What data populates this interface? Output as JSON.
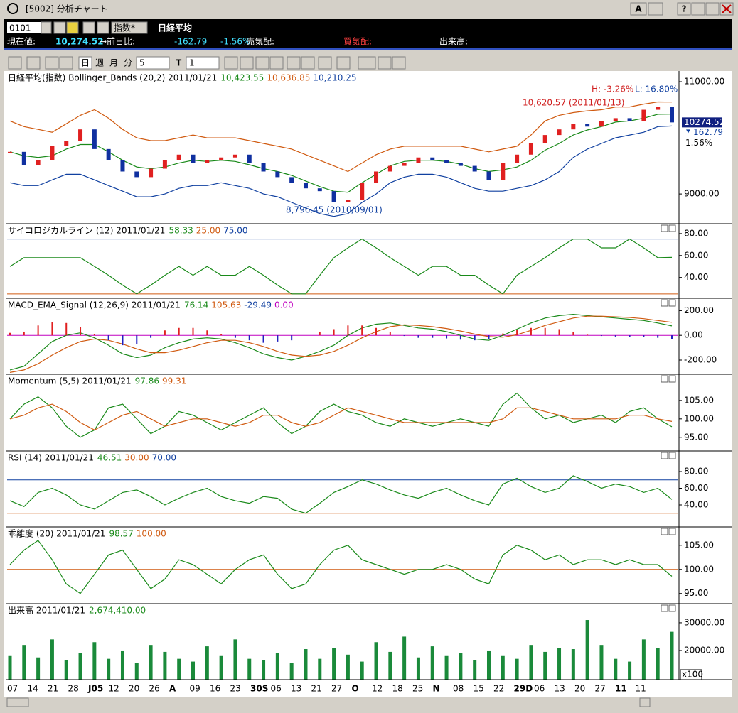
{
  "window": {
    "title": "[5002] 分析チャート",
    "buttons": [
      "A",
      "?"
    ]
  },
  "info_bar": {
    "code": "0101",
    "kind": "指数*",
    "name": "日経平均",
    "price_label": "現在値:",
    "price": "10,274.52",
    "change_label": "→前日比:",
    "change": "-162.79",
    "change_pct": "-1.56%",
    "ask_label": "売気配:",
    "bid_label": "買気配:",
    "volume_label": "出来高:"
  },
  "toolbar": {
    "periods": [
      "日",
      "週",
      "月",
      "分"
    ],
    "minutes": "5",
    "tick_label": "T",
    "tick_count": "1"
  },
  "x_axis": {
    "labels": [
      "07",
      "14",
      "21",
      "28",
      "J05",
      "12",
      "20",
      "26",
      "A",
      "09",
      "16",
      "23",
      "30S",
      "06",
      "13",
      "21",
      "27",
      "O",
      "12",
      "18",
      "25",
      "N",
      "08",
      "15",
      "22",
      "29D",
      "06",
      "13",
      "20",
      "27",
      "11",
      "11"
    ]
  },
  "chart_data": [
    {
      "type": "candlestick",
      "title": "日経平均(指数) Bollinger_Bands (20,2) 2011/01/21",
      "readouts": [
        {
          "text": "10,423.55",
          "color": "#1a8a1a"
        },
        {
          "text": "10,636.85",
          "color": "#d05a10"
        },
        {
          "text": "10,210.25",
          "color": "#1040a0"
        }
      ],
      "up_color": "#e02020",
      "down_color": "#1030a0",
      "close": [
        9750,
        9520,
        9600,
        9850,
        9950,
        10150,
        9800,
        9600,
        9400,
        9300,
        9450,
        9600,
        9700,
        9550,
        9600,
        9650,
        9700,
        9550,
        9400,
        9300,
        9200,
        9100,
        9050,
        8850,
        8900,
        9200,
        9400,
        9500,
        9550,
        9650,
        9600,
        9550,
        9500,
        9400,
        9250,
        9550,
        9700,
        9900,
        10050,
        10150,
        10250,
        10200,
        10300,
        10350,
        10300,
        10500,
        10550,
        10274.52
      ],
      "series": [
        {
          "color": "#1a8a1a",
          "values": [
            9750,
            9680,
            9650,
            9680,
            9800,
            9880,
            9880,
            9750,
            9600,
            9480,
            9450,
            9480,
            9550,
            9600,
            9580,
            9600,
            9580,
            9520,
            9450,
            9400,
            9330,
            9230,
            9130,
            9050,
            9030,
            9200,
            9350,
            9500,
            9580,
            9600,
            9600,
            9580,
            9530,
            9450,
            9400,
            9430,
            9480,
            9600,
            9780,
            9900,
            10050,
            10140,
            10200,
            10280,
            10300,
            10350,
            10420,
            10423.55
          ]
        },
        {
          "color": "#d05a10",
          "values": [
            10300,
            10200,
            10150,
            10100,
            10250,
            10400,
            10500,
            10350,
            10150,
            10000,
            9950,
            9950,
            10000,
            10050,
            10000,
            10000,
            10000,
            9950,
            9900,
            9850,
            9800,
            9700,
            9600,
            9500,
            9400,
            9550,
            9700,
            9800,
            9850,
            9850,
            9850,
            9850,
            9850,
            9800,
            9750,
            9800,
            9850,
            10050,
            10300,
            10400,
            10450,
            10480,
            10500,
            10550,
            10550,
            10600,
            10640,
            10636.85
          ]
        },
        {
          "color": "#1040a0",
          "values": [
            9200,
            9150,
            9150,
            9250,
            9350,
            9350,
            9250,
            9150,
            9050,
            8950,
            8950,
            9000,
            9100,
            9150,
            9150,
            9200,
            9150,
            9100,
            9000,
            8950,
            8850,
            8750,
            8650,
            8600,
            8650,
            8850,
            9000,
            9200,
            9300,
            9350,
            9350,
            9300,
            9200,
            9100,
            9050,
            9050,
            9100,
            9150,
            9250,
            9400,
            9650,
            9800,
            9900,
            10000,
            10050,
            10100,
            10200,
            10210.25
          ]
        }
      ],
      "ylim": [
        8470,
        11190
      ],
      "yticks": [
        {
          "value": 11000,
          "label": "11000.00"
        },
        {
          "value": 9000,
          "label": "9000.00"
        }
      ],
      "annotations": [
        "H: -3.26%",
        "L: 16.80%",
        "10,620.57 (2011/01/13)",
        "8,796.45 (2010/09/01)"
      ],
      "last_price": {
        "label": "10274.52",
        "change": "162.79",
        "change_pct": "1.56%"
      }
    },
    {
      "type": "line",
      "title": "サイコロジカルライン (12) 2011/01/21",
      "readouts": [
        {
          "text": "58.33",
          "color": "#1a8a1a"
        },
        {
          "text": "25.00",
          "color": "#d05a10"
        },
        {
          "text": "75.00",
          "color": "#1040a0"
        }
      ],
      "series": [
        {
          "color": "#1a8a1a",
          "values": [
            50,
            58,
            58,
            58,
            58,
            58,
            50,
            42,
            33,
            25,
            33,
            42,
            50,
            42,
            50,
            42,
            42,
            50,
            42,
            33,
            25,
            25,
            42,
            58,
            67,
            75,
            67,
            58,
            50,
            42,
            50,
            50,
            42,
            42,
            33,
            25,
            42,
            50,
            58,
            67,
            75,
            75,
            67,
            67,
            75,
            67,
            58,
            58.33
          ]
        }
      ],
      "reference_lines": [
        {
          "value": 25,
          "color": "#d05a10"
        },
        {
          "value": 75,
          "color": "#1040a0"
        }
      ],
      "ylim": [
        21,
        89
      ],
      "yticks": [
        {
          "value": 80,
          "label": "80.00"
        },
        {
          "value": 60,
          "label": "60.00"
        },
        {
          "value": 40,
          "label": "40.00"
        }
      ]
    },
    {
      "type": "line",
      "title": "MACD_EMA_Signal (12,26,9) 2011/01/21",
      "readouts": [
        {
          "text": "76.14",
          "color": "#1a8a1a"
        },
        {
          "text": "105.63",
          "color": "#d05a10"
        },
        {
          "text": "-29.49",
          "color": "#1040a0"
        },
        {
          "text": "0.00",
          "color": "#c000c0"
        }
      ],
      "series": [
        {
          "color": "#1a8a1a",
          "values": [
            -280,
            -250,
            -150,
            -50,
            0,
            20,
            -20,
            -80,
            -150,
            -180,
            -160,
            -100,
            -60,
            -30,
            -20,
            -30,
            -60,
            -100,
            -150,
            -180,
            -200,
            -170,
            -130,
            -80,
            0,
            60,
            90,
            100,
            80,
            60,
            50,
            30,
            0,
            -30,
            -40,
            0,
            50,
            100,
            140,
            160,
            170,
            160,
            150,
            140,
            130,
            120,
            100,
            76.14
          ]
        },
        {
          "color": "#d05a10",
          "values": [
            -300,
            -280,
            -230,
            -160,
            -100,
            -50,
            -30,
            -40,
            -70,
            -110,
            -140,
            -140,
            -120,
            -90,
            -60,
            -40,
            -40,
            -60,
            -90,
            -130,
            -160,
            -170,
            -160,
            -130,
            -80,
            -20,
            30,
            70,
            85,
            80,
            70,
            55,
            35,
            10,
            -10,
            -15,
            5,
            40,
            80,
            110,
            140,
            155,
            155,
            150,
            145,
            135,
            120,
            105.63
          ]
        },
        {
          "color": "#2020c0",
          "positive_color": "#e02020",
          "style": "bar",
          "values": [
            20,
            30,
            80,
            110,
            100,
            70,
            10,
            -40,
            -80,
            -70,
            -20,
            40,
            60,
            60,
            40,
            10,
            -20,
            -40,
            -60,
            -50,
            -40,
            0,
            30,
            50,
            80,
            80,
            60,
            30,
            -5,
            -20,
            -20,
            -25,
            -35,
            -40,
            -30,
            15,
            45,
            60,
            60,
            50,
            30,
            5,
            -5,
            -10,
            -15,
            -15,
            -20,
            -29.49
          ]
        }
      ],
      "reference_lines": [
        {
          "value": 0,
          "color": "#c000c0"
        }
      ],
      "ylim": [
        -315,
        300
      ],
      "yticks": [
        {
          "value": 200,
          "label": "200.00"
        },
        {
          "value": 0,
          "label": "0.00"
        },
        {
          "value": -200,
          "label": "-200.00"
        }
      ]
    },
    {
      "type": "line",
      "title": "Momentum (5,5) 2011/01/21",
      "readouts": [
        {
          "text": "97.86",
          "color": "#1a8a1a"
        },
        {
          "text": "99.31",
          "color": "#d05a10"
        }
      ],
      "series": [
        {
          "color": "#1a8a1a",
          "values": [
            100,
            104,
            106,
            103,
            98,
            95,
            97,
            103,
            104,
            100,
            96,
            98,
            102,
            101,
            99,
            97,
            99,
            101,
            103,
            99,
            96,
            98,
            102,
            104,
            102,
            101,
            99,
            98,
            100,
            99,
            98,
            99,
            100,
            99,
            98,
            104,
            107,
            103,
            100,
            101,
            99,
            100,
            101,
            99,
            102,
            103,
            100,
            97.86
          ]
        },
        {
          "color": "#d05a10",
          "values": [
            100,
            101,
            103,
            104,
            102,
            99,
            97,
            99,
            101,
            102,
            100,
            98,
            99,
            100,
            100,
            99,
            98,
            99,
            101,
            101,
            99,
            98,
            99,
            101,
            103,
            102,
            101,
            100,
            99,
            99,
            99,
            99,
            99,
            99,
            99,
            100,
            103,
            103,
            102,
            101,
            100,
            100,
            100,
            100,
            101,
            101,
            100,
            99.31
          ]
        }
      ],
      "ylim": [
        91.3,
        112.1
      ],
      "yticks": [
        {
          "value": 105,
          "label": "105.00"
        },
        {
          "value": 100,
          "label": "100.00"
        },
        {
          "value": 95,
          "label": "95.00"
        }
      ]
    },
    {
      "type": "line",
      "title": "RSI (14) 2011/01/21",
      "readouts": [
        {
          "text": "46.51",
          "color": "#1a8a1a"
        },
        {
          "text": "30.00",
          "color": "#d05a10"
        },
        {
          "text": "70.00",
          "color": "#1040a0"
        }
      ],
      "series": [
        {
          "color": "#1a8a1a",
          "values": [
            45,
            38,
            55,
            60,
            52,
            40,
            35,
            45,
            55,
            58,
            50,
            40,
            48,
            55,
            60,
            50,
            45,
            42,
            50,
            48,
            35,
            30,
            42,
            55,
            62,
            70,
            65,
            58,
            52,
            48,
            55,
            60,
            52,
            45,
            40,
            65,
            72,
            62,
            55,
            60,
            75,
            68,
            60,
            65,
            62,
            55,
            60,
            46.51
          ]
        }
      ],
      "reference_lines": [
        {
          "value": 30,
          "color": "#d05a10"
        },
        {
          "value": 70,
          "color": "#1040a0"
        }
      ],
      "ylim": [
        13.6,
        104.7
      ],
      "yticks": [
        {
          "value": 80,
          "label": "80.00"
        },
        {
          "value": 60,
          "label": "60.00"
        },
        {
          "value": 40,
          "label": "40.00"
        }
      ]
    },
    {
      "type": "line",
      "title": "乖離度 (20) 2011/01/21",
      "readouts": [
        {
          "text": "98.57",
          "color": "#1a8a1a"
        },
        {
          "text": "100.00",
          "color": "#d05a10"
        }
      ],
      "series": [
        {
          "color": "#1a8a1a",
          "values": [
            101,
            104,
            106,
            102,
            97,
            95,
            99,
            103,
            104,
            100,
            96,
            98,
            102,
            101,
            99,
            97,
            100,
            102,
            103,
            99,
            96,
            97,
            101,
            104,
            105,
            102,
            101,
            100,
            99,
            100,
            100,
            101,
            100,
            98,
            97,
            103,
            105,
            104,
            102,
            103,
            101,
            102,
            102,
            101,
            102,
            101,
            101,
            98.57
          ]
        }
      ],
      "reference_lines": [
        {
          "value": 100,
          "color": "#d05a10"
        }
      ],
      "ylim": [
        92.9,
        108.8
      ],
      "yticks": [
        {
          "value": 105,
          "label": "105.00"
        },
        {
          "value": 100,
          "label": "100.00"
        },
        {
          "value": 95,
          "label": "95.00"
        }
      ]
    },
    {
      "type": "bar",
      "title": "出来高 2011/01/21",
      "readouts": [
        {
          "text": "2,674,410.00",
          "color": "#1a8a1a"
        }
      ],
      "unit": "x100",
      "series": [
        {
          "color": "#1a8a3a",
          "style": "bar",
          "values": [
            18000,
            22000,
            17500,
            24000,
            16500,
            19000,
            23000,
            17000,
            20000,
            15500,
            22000,
            19500,
            17000,
            16000,
            21500,
            18000,
            24000,
            17000,
            16500,
            19000,
            15500,
            20500,
            17000,
            21000,
            18500,
            16000,
            23000,
            19500,
            25000,
            17500,
            21500,
            18000,
            19000,
            16500,
            20000,
            18000,
            17000,
            22000,
            19500,
            21000,
            20500,
            31000,
            22000,
            17000,
            16000,
            24000,
            21000,
            26744.1
          ]
        }
      ],
      "ylim": [
        9487,
        36900
      ],
      "yticks": [
        {
          "value": 30000,
          "label": "30000.00"
        },
        {
          "value": 20000,
          "label": "20000.00"
        }
      ]
    }
  ]
}
